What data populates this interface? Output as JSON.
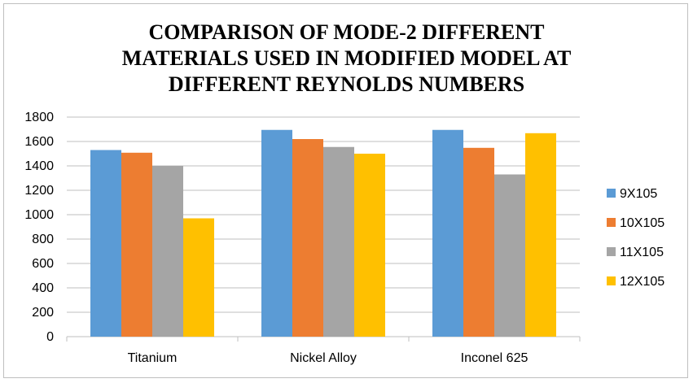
{
  "chart_data": {
    "type": "bar",
    "title_lines": [
      "COMPARISON OF MODE-2 DIFFERENT",
      "MATERIALS USED IN MODIFIED MODEL AT",
      "DIFFERENT REYNOLDS NUMBERS"
    ],
    "categories": [
      "Titanium",
      "Nickel Alloy",
      "Inconel 625"
    ],
    "series": [
      {
        "name": "9X105",
        "color": "#5b9bd5",
        "values": [
          1530,
          1695,
          1695
        ]
      },
      {
        "name": "10X105",
        "color": "#ed7d31",
        "values": [
          1508,
          1620,
          1548
        ]
      },
      {
        "name": "11X105",
        "color": "#a5a5a5",
        "values": [
          1400,
          1555,
          1330
        ]
      },
      {
        "name": "12X105",
        "color": "#ffc000",
        "values": [
          970,
          1500,
          1668
        ]
      }
    ],
    "ylim": [
      0,
      1800
    ],
    "yticks": [
      0,
      200,
      400,
      600,
      800,
      1000,
      1200,
      1400,
      1600,
      1800
    ],
    "grid": true,
    "legend_position": "right",
    "gridline_color": "#bfbfbf",
    "axis_color": "#bfbfbf"
  }
}
